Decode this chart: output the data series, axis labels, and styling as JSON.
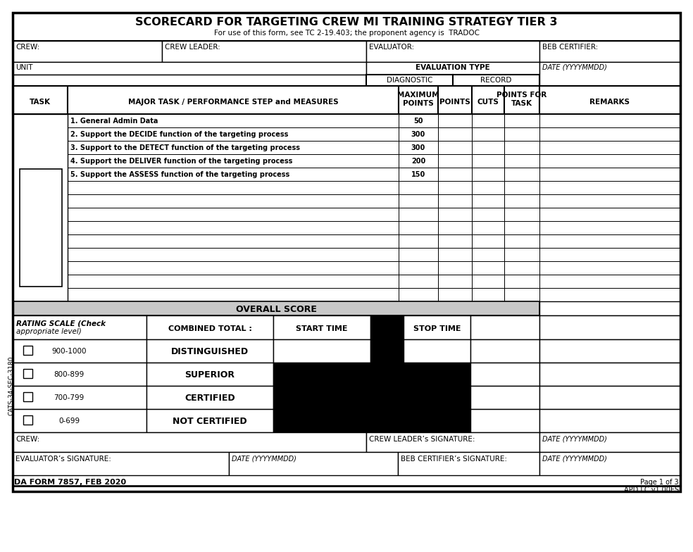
{
  "title": "SCORECARD FOR TARGETING CREW MI TRAINING STRATEGY TIER 3",
  "subtitle": "For use of this form, see TC 2-19.403; the proponent agency is  TRADOC",
  "form_id": "DA FORM 7857, FEB 2020",
  "page_info": "Page 1 of 3",
  "apd_info": "APD LC v1.00ES",
  "header_fields": [
    "CREW:",
    "CREW LEADER:",
    "EVALUATOR:",
    "BEB CERTIFIER:"
  ],
  "unit_label": "UNIT",
  "eval_type_label": "EVALUATION TYPE",
  "date_label": "DATE (YYYYMMDD)",
  "diagnostic_label": "DIAGNOSTIC",
  "record_label": "RECORD",
  "tasks": [
    [
      "1. General Admin Data",
      "50"
    ],
    [
      "2. Support the DECIDE function of the targeting process",
      "300"
    ],
    [
      "3. Support to the DETECT function of the targeting process",
      "300"
    ],
    [
      "4. Support the DELIVER function of the targeting process",
      "200"
    ],
    [
      "5. Support the ASSESS function of the targeting process",
      "150"
    ],
    [
      "",
      ""
    ],
    [
      "",
      ""
    ],
    [
      "",
      ""
    ],
    [
      "",
      ""
    ],
    [
      "",
      ""
    ],
    [
      "",
      ""
    ],
    [
      "",
      ""
    ],
    [
      "",
      ""
    ],
    [
      "",
      ""
    ]
  ],
  "overall_score_label": "OVERALL SCORE",
  "rating_scale_label": "RATING SCALE (Check\nappropriate level)",
  "combined_total_label": "COMBINED TOTAL :",
  "start_time_label": "START TIME",
  "stop_time_label": "STOP TIME",
  "rating_rows": [
    [
      "900-1000",
      "DISTINGUISHED"
    ],
    [
      "800-899",
      "SUPERIOR"
    ],
    [
      "700-799",
      "CERTIFIED"
    ],
    [
      "0-699",
      "NOT CERTIFIED"
    ]
  ],
  "crew_bottom_label": "CREW:",
  "crew_leader_sig_label": "CREW LEADER’s SIGNATURE:",
  "date_bottom_label": "DATE (YYYYMMDD)",
  "evaluator_sig_label": "EVALUATOR’s SIGNATURE:",
  "date_eval_label": "DATE (YYYYMMDD)",
  "beb_sig_label": "BEB CERTIFIER’s SIGNATURE:",
  "date_beb_label": "DATE (YYYYMMDD)",
  "cats_label": "CATS-34-SEC-3180",
  "bg_color": "#ffffff",
  "gray_fill": "#c8c8c8"
}
